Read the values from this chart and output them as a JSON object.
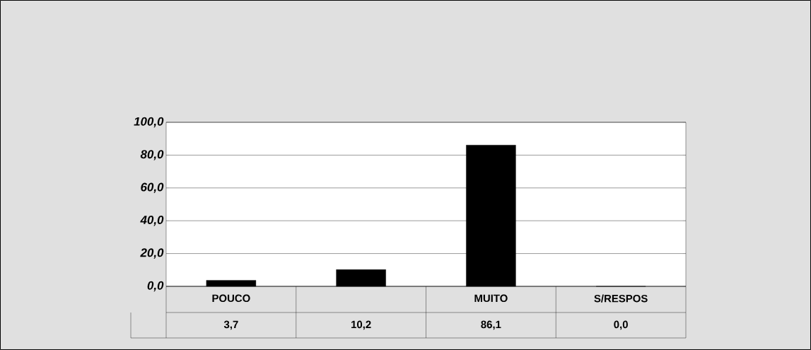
{
  "chart_data": {
    "type": "bar",
    "categories": [
      "POUCO",
      null,
      "MUITO",
      "S/RESPOS"
    ],
    "values": [
      3.7,
      10.2,
      86.1,
      0.0
    ],
    "color": "#000000",
    "ylim": [
      0,
      100
    ],
    "yticks": [
      {
        "value": 0,
        "label": "0,0"
      },
      {
        "value": 20,
        "label": "20,0"
      },
      {
        "value": 40,
        "label": "40,0"
      },
      {
        "value": 60,
        "label": "60,0"
      },
      {
        "value": 80,
        "label": "80,0"
      },
      {
        "value": 100,
        "label": "100,0"
      }
    ],
    "grid": "y",
    "value_labels": [
      "3,7",
      "10,2",
      "86,1",
      "0,0"
    ]
  }
}
